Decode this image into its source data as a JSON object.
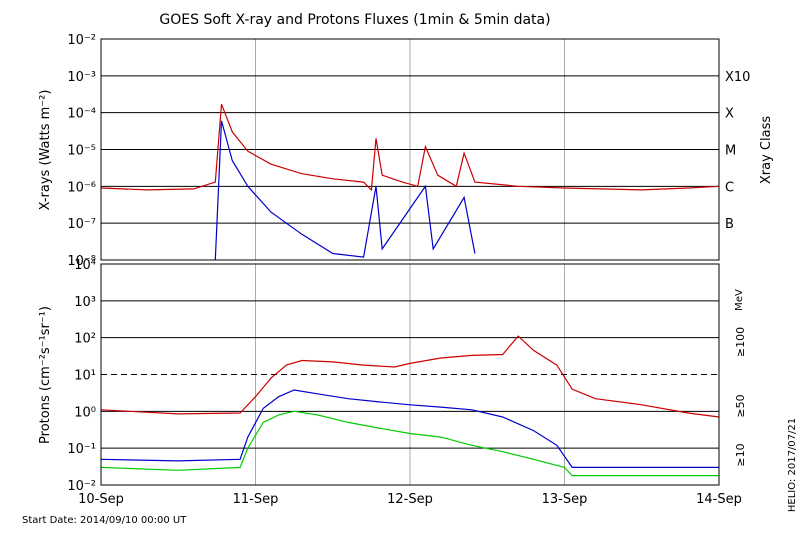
{
  "title": "GOES Soft X-ray and Protons Fluxes   (1min & 5min data)",
  "start_date": "Start Date: 2014/09/10 00:00 UT",
  "credit": "HELIO: 2017/07/21",
  "colors": {
    "xray_long": "#cc0000",
    "xray_short": "#0000cc",
    "p10": "#cc0000",
    "p50": "#0000cc",
    "p100": "#00cc00"
  },
  "chart_data": [
    {
      "type": "line",
      "title": "GOES Soft X-ray and Protons Fluxes   (1min & 5min data)",
      "ylabel": "X-rays (Watts m⁻²)",
      "yscale": "log",
      "ylim": [
        1e-08,
        0.01
      ],
      "y_tick_exponents": [
        -8,
        -7,
        -6,
        -5,
        -4,
        -3,
        -2
      ],
      "right_axis_label": "Xray Class",
      "class_labels": [
        {
          "label": "B",
          "value": 1e-07
        },
        {
          "label": "C",
          "value": 1e-06
        },
        {
          "label": "M",
          "value": 1e-05
        },
        {
          "label": "X",
          "value": 0.0001
        },
        {
          "label": "X10",
          "value": 0.001
        }
      ],
      "xlim": [
        0,
        4
      ],
      "series": [
        {
          "color": "#cc0000",
          "points": [
            [
              0,
              9e-07
            ],
            [
              0.3,
              8e-07
            ],
            [
              0.6,
              8.5e-07
            ],
            [
              0.74,
              1.3e-06
            ],
            [
              0.78,
              0.00017
            ],
            [
              0.85,
              3e-05
            ],
            [
              0.95,
              9e-06
            ],
            [
              1.1,
              4e-06
            ],
            [
              1.3,
              2.2e-06
            ],
            [
              1.5,
              1.6e-06
            ],
            [
              1.7,
              1.3e-06
            ],
            [
              1.75,
              8e-07
            ],
            [
              1.78,
              2e-05
            ],
            [
              1.82,
              2e-06
            ],
            [
              1.95,
              1.3e-06
            ],
            [
              2.05,
              1e-06
            ],
            [
              2.1,
              1.2e-05
            ],
            [
              2.18,
              2e-06
            ],
            [
              2.3,
              1e-06
            ],
            [
              2.35,
              8e-06
            ],
            [
              2.42,
              1.3e-06
            ],
            [
              2.7,
              1e-06
            ],
            [
              3.0,
              9e-07
            ],
            [
              3.5,
              8e-07
            ],
            [
              3.8,
              9e-07
            ],
            [
              4.0,
              1e-06
            ]
          ]
        },
        {
          "color": "#0000cc",
          "points": [
            [
              0.74,
              1e-08
            ],
            [
              0.78,
              6e-05
            ],
            [
              0.85,
              5e-06
            ],
            [
              0.95,
              1e-06
            ],
            [
              1.1,
              2e-07
            ],
            [
              1.3,
              5e-08
            ],
            [
              1.5,
              1.5e-08
            ],
            [
              1.7,
              1.2e-08
            ],
            [
              1.78,
              1e-06
            ],
            [
              1.82,
              2e-08
            ],
            [
              2.1,
              1e-06
            ],
            [
              2.15,
              2e-08
            ],
            [
              2.35,
              5e-07
            ],
            [
              2.42,
              1.5e-08
            ]
          ]
        }
      ]
    },
    {
      "type": "line",
      "ylabel": "Protons (cm⁻²s⁻¹sr⁻¹)",
      "yscale": "log",
      "ylim": [
        0.01,
        10000
      ],
      "y_tick_labels": [
        "10⁻²",
        "10⁻¹",
        "10⁰",
        "10¹",
        "10²",
        "10³",
        "10⁴"
      ],
      "y_tick_values": [
        0.01,
        0.1,
        1,
        10,
        100,
        1000,
        10000
      ],
      "threshold": 10,
      "right_axis_unit": "MeV",
      "x_tick_labels": [
        "10-Sep",
        "11-Sep",
        "12-Sep",
        "13-Sep",
        "14-Sep"
      ],
      "x_tick_values": [
        0,
        1,
        2,
        3,
        4
      ],
      "xlim": [
        0,
        4
      ],
      "series": [
        {
          "name": "≥10",
          "color": "#cc0000",
          "points": [
            [
              0,
              1.1
            ],
            [
              0.5,
              0.85
            ],
            [
              0.9,
              0.9
            ],
            [
              1.0,
              2.5
            ],
            [
              1.1,
              8
            ],
            [
              1.2,
              18
            ],
            [
              1.3,
              24
            ],
            [
              1.5,
              22
            ],
            [
              1.7,
              18
            ],
            [
              1.9,
              16
            ],
            [
              2.0,
              20
            ],
            [
              2.2,
              28
            ],
            [
              2.4,
              33
            ],
            [
              2.6,
              35
            ],
            [
              2.7,
              110
            ],
            [
              2.8,
              45
            ],
            [
              2.95,
              18
            ],
            [
              3.05,
              4
            ],
            [
              3.2,
              2.2
            ],
            [
              3.5,
              1.5
            ],
            [
              3.8,
              0.9
            ],
            [
              4.0,
              0.7
            ]
          ]
        },
        {
          "name": "≥50",
          "color": "#0000cc",
          "points": [
            [
              0,
              0.05
            ],
            [
              0.5,
              0.045
            ],
            [
              0.9,
              0.05
            ],
            [
              0.95,
              0.2
            ],
            [
              1.05,
              1.2
            ],
            [
              1.15,
              2.5
            ],
            [
              1.25,
              3.8
            ],
            [
              1.4,
              3
            ],
            [
              1.6,
              2.2
            ],
            [
              1.8,
              1.8
            ],
            [
              2.0,
              1.5
            ],
            [
              2.2,
              1.3
            ],
            [
              2.4,
              1.1
            ],
            [
              2.6,
              0.7
            ],
            [
              2.8,
              0.3
            ],
            [
              2.95,
              0.12
            ],
            [
              3.05,
              0.03
            ],
            [
              3.5,
              0.03
            ],
            [
              4.0,
              0.03
            ]
          ]
        },
        {
          "name": "≥100",
          "color": "#00cc00",
          "points": [
            [
              0,
              0.03
            ],
            [
              0.5,
              0.025
            ],
            [
              0.9,
              0.03
            ],
            [
              0.95,
              0.1
            ],
            [
              1.05,
              0.5
            ],
            [
              1.15,
              0.8
            ],
            [
              1.25,
              1
            ],
            [
              1.4,
              0.8
            ],
            [
              1.6,
              0.5
            ],
            [
              1.8,
              0.35
            ],
            [
              2.0,
              0.25
            ],
            [
              2.2,
              0.2
            ],
            [
              2.4,
              0.12
            ],
            [
              2.6,
              0.08
            ],
            [
              2.8,
              0.05
            ],
            [
              3.0,
              0.03
            ],
            [
              3.05,
              0.018
            ],
            [
              3.5,
              0.018
            ],
            [
              4.0,
              0.018
            ]
          ]
        }
      ]
    }
  ]
}
